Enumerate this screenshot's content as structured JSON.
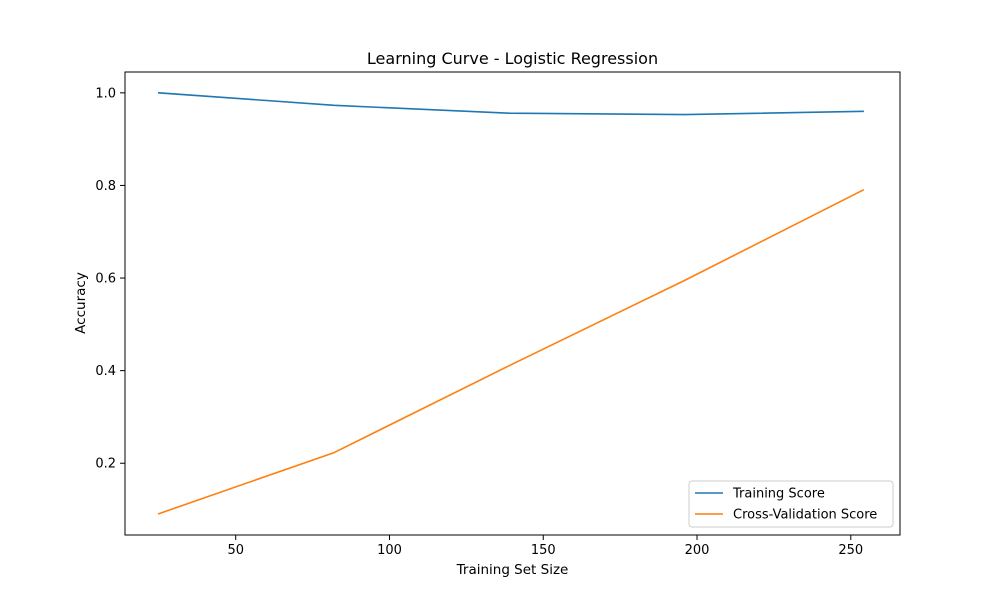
{
  "chart_data": {
    "type": "line",
    "title": "Learning Curve - Logistic Regression",
    "xlabel": "Training Set Size",
    "ylabel": "Accuracy",
    "xlim": [
      14,
      266
    ],
    "ylim": [
      0.045,
      1.045
    ],
    "xticks": [
      50,
      100,
      150,
      200,
      250
    ],
    "yticks": [
      0.2,
      0.4,
      0.6,
      0.8,
      1.0
    ],
    "grid": false,
    "legend_position": "bottom-right",
    "x": [
      25,
      82,
      139,
      196,
      254
    ],
    "series": [
      {
        "name": "Training Score",
        "color": "#1f77b4",
        "values": [
          1.0,
          0.973,
          0.956,
          0.953,
          0.96
        ]
      },
      {
        "name": "Cross-Validation Score",
        "color": "#ff7f0e",
        "values": [
          0.091,
          0.223,
          0.411,
          0.595,
          0.79
        ]
      }
    ]
  }
}
